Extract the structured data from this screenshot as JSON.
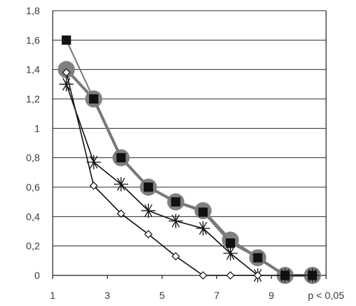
{
  "chart_data": {
    "type": "line",
    "title": "",
    "xlabel": "",
    "ylabel": "",
    "xlim": [
      1,
      11
    ],
    "ylim": [
      0,
      1.8
    ],
    "x_ticks": [
      {
        "value": 1,
        "label": "1"
      },
      {
        "value": 3,
        "label": "3"
      },
      {
        "value": 5,
        "label": "5"
      },
      {
        "value": 7,
        "label": "7"
      },
      {
        "value": 9,
        "label": "9"
      },
      {
        "value": 11,
        "label": "p < 0,05"
      }
    ],
    "y_ticks": [
      {
        "value": 0,
        "label": "0"
      },
      {
        "value": 0.2,
        "label": "0,2"
      },
      {
        "value": 0.4,
        "label": "0,4"
      },
      {
        "value": 0.6,
        "label": "0,6"
      },
      {
        "value": 0.8,
        "label": "0,8"
      },
      {
        "value": 1.0,
        "label": "1"
      },
      {
        "value": 1.2,
        "label": "1,2"
      },
      {
        "value": 1.4,
        "label": "1,4"
      },
      {
        "value": 1.6,
        "label": "1,6"
      },
      {
        "value": 1.8,
        "label": "1,8"
      }
    ],
    "grid": "horizontal",
    "legend": "none",
    "series": [
      {
        "marker": "big-gray-circle",
        "color": "#7a7a7a",
        "x": [
          1.5,
          2.5,
          3.5,
          4.5,
          5.5,
          6.5,
          7.5,
          8.5,
          9.5,
          10.5
        ],
        "values": [
          1.4,
          1.2,
          0.8,
          0.6,
          0.5,
          0.44,
          0.24,
          0.12,
          0,
          0
        ]
      },
      {
        "marker": "black-square",
        "color": "#777777",
        "x": [
          1.5,
          2.5,
          3.5,
          4.5,
          5.5,
          6.5,
          7.5,
          8.5,
          9.5,
          10.5
        ],
        "values": [
          1.6,
          1.2,
          0.8,
          0.6,
          0.5,
          0.43,
          0.22,
          0.12,
          0,
          0
        ]
      },
      {
        "marker": "star",
        "color": "#111111",
        "x": [
          1.5,
          2.5,
          3.5,
          4.5,
          5.5,
          6.5,
          7.5,
          8.5,
          9.5,
          10.5
        ],
        "values": [
          1.3,
          0.77,
          0.62,
          0.44,
          0.37,
          0.32,
          0.15,
          0,
          0,
          0
        ]
      },
      {
        "marker": "open-diamond",
        "color": "#111111",
        "x": [
          1.5,
          2.5,
          3.5,
          4.5,
          5.5,
          6.5,
          7.5,
          8.5
        ],
        "values": [
          1.38,
          0.61,
          0.42,
          0.28,
          0.13,
          0,
          0,
          0
        ]
      }
    ]
  }
}
